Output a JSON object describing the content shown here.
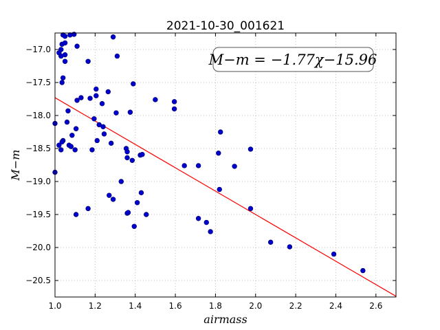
{
  "chart_data": {
    "type": "scatter",
    "title": "2021-10-30_001621",
    "xlabel": "airmass",
    "ylabel": "M−m",
    "xlim": [
      1.0,
      2.7
    ],
    "ylim": [
      -20.75,
      -16.75
    ],
    "y_inverted": true,
    "grid": true,
    "x_ticks": [
      1.0,
      1.2,
      1.4,
      1.6,
      1.8,
      2.0,
      2.2,
      2.4,
      2.6
    ],
    "x_tick_labels": [
      "1.0",
      "1.2",
      "1.4",
      "1.6",
      "1.8",
      "2.0",
      "2.2",
      "2.4",
      "2.6"
    ],
    "y_ticks": [
      -17.0,
      -17.5,
      -18.0,
      -18.5,
      -19.0,
      -19.5,
      -20.0,
      -20.5
    ],
    "y_tick_labels": [
      "−17.0",
      "−17.5",
      "−18.0",
      "−18.5",
      "−19.0",
      "−19.5",
      "−20.0",
      "−20.5"
    ],
    "annotation": "M−m = −1.77χ−15.96",
    "fit": {
      "slope": -1.77,
      "intercept": -15.96,
      "color": "#ff0000"
    },
    "marker_color": "#0000cc",
    "points": [
      [
        1.0,
        -18.12
      ],
      [
        1.0,
        -18.86
      ],
      [
        1.02,
        -18.45
      ],
      [
        1.02,
        -17.05
      ],
      [
        1.03,
        -17.0
      ],
      [
        1.03,
        -17.1
      ],
      [
        1.035,
        -16.92
      ],
      [
        1.04,
        -16.78
      ],
      [
        1.05,
        -16.8
      ],
      [
        1.05,
        -16.9
      ],
      [
        1.04,
        -17.43
      ],
      [
        1.035,
        -17.5
      ],
      [
        1.04,
        -18.38
      ],
      [
        1.03,
        -18.52
      ],
      [
        1.035,
        -18.4
      ],
      [
        1.05,
        -17.08
      ],
      [
        1.05,
        -17.18
      ],
      [
        1.06,
        -18.1
      ],
      [
        1.065,
        -17.93
      ],
      [
        1.075,
        -16.78
      ],
      [
        1.07,
        -18.45
      ],
      [
        1.08,
        -18.47
      ],
      [
        1.085,
        -18.3
      ],
      [
        1.095,
        -16.77
      ],
      [
        1.1,
        -18.52
      ],
      [
        1.105,
        -18.2
      ],
      [
        1.11,
        -16.95
      ],
      [
        1.11,
        -17.77
      ],
      [
        1.13,
        -17.73
      ],
      [
        1.105,
        -19.5
      ],
      [
        1.165,
        -17.18
      ],
      [
        1.175,
        -17.74
      ],
      [
        1.185,
        -18.52
      ],
      [
        1.195,
        -18.05
      ],
      [
        1.205,
        -17.6
      ],
      [
        1.205,
        -17.7
      ],
      [
        1.21,
        -18.38
      ],
      [
        1.22,
        -18.14
      ],
      [
        1.235,
        -17.82
      ],
      [
        1.24,
        -18.17
      ],
      [
        1.245,
        -18.28
      ],
      [
        1.165,
        -19.41
      ],
      [
        1.265,
        -17.64
      ],
      [
        1.27,
        -19.21
      ],
      [
        1.28,
        -18.42
      ],
      [
        1.29,
        -16.81
      ],
      [
        1.29,
        -19.27
      ],
      [
        1.305,
        -17.96
      ],
      [
        1.31,
        -17.1
      ],
      [
        1.33,
        -19.0
      ],
      [
        1.355,
        -18.5
      ],
      [
        1.36,
        -18.55
      ],
      [
        1.36,
        -18.64
      ],
      [
        1.36,
        -19.48
      ],
      [
        1.365,
        -19.47
      ],
      [
        1.375,
        -17.95
      ],
      [
        1.385,
        -18.68
      ],
      [
        1.39,
        -17.52
      ],
      [
        1.395,
        -19.68
      ],
      [
        1.41,
        -19.32
      ],
      [
        1.425,
        -18.6
      ],
      [
        1.43,
        -19.17
      ],
      [
        1.435,
        -18.59
      ],
      [
        1.455,
        -19.5
      ],
      [
        1.5,
        -17.76
      ],
      [
        1.595,
        -17.79
      ],
      [
        1.595,
        -17.9
      ],
      [
        1.645,
        -18.76
      ],
      [
        1.715,
        -18.76
      ],
      [
        1.715,
        -19.56
      ],
      [
        1.755,
        -19.62
      ],
      [
        1.775,
        -19.76
      ],
      [
        1.815,
        -18.57
      ],
      [
        1.82,
        -19.12
      ],
      [
        1.825,
        -18.25
      ],
      [
        1.895,
        -18.77
      ],
      [
        1.975,
        -18.51
      ],
      [
        1.975,
        -19.41
      ],
      [
        2.075,
        -19.92
      ],
      [
        2.17,
        -19.99
      ],
      [
        2.39,
        -20.1
      ],
      [
        2.535,
        -20.35
      ]
    ]
  }
}
